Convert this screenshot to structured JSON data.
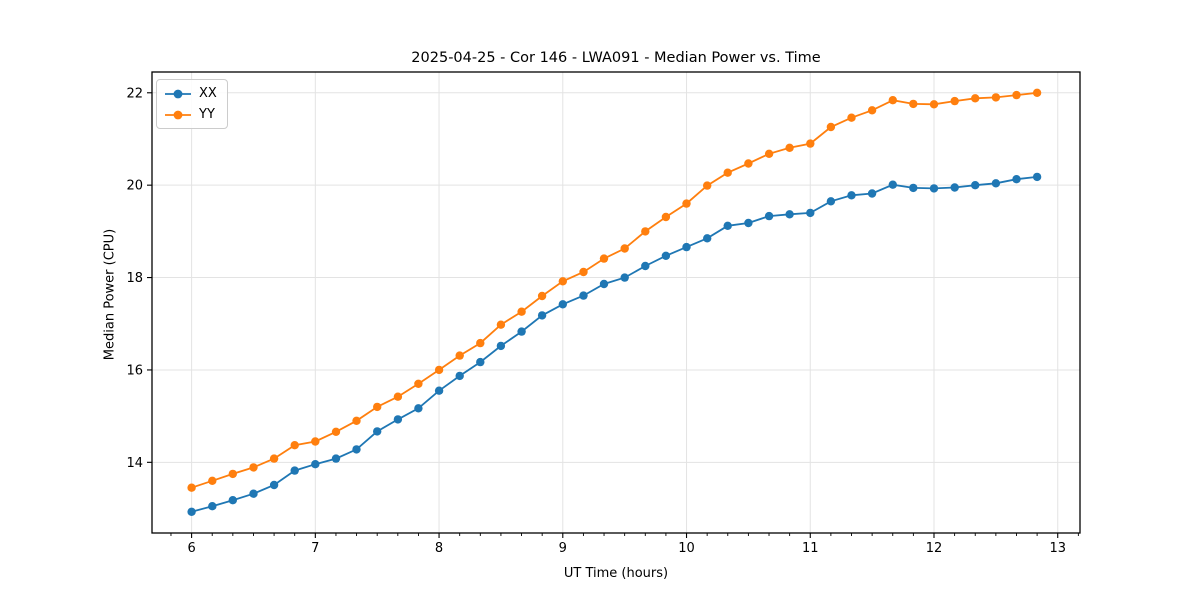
{
  "page": {
    "background": "#ffffff"
  },
  "chart_data": {
    "type": "line",
    "title": "2025-04-25 - Cor 146 - LWA091 - Median Power vs. Time",
    "xlabel": "UT Time (hours)",
    "ylabel": "Median Power (CPU)",
    "xlim": [
      5.68,
      13.18
    ],
    "ylim": [
      12.47,
      22.45
    ],
    "xticks": [
      6,
      7,
      8,
      9,
      10,
      11,
      12,
      13
    ],
    "yticks": [
      14,
      16,
      18,
      20,
      22
    ],
    "x_minor_tick_step": 0.1667,
    "grid": true,
    "grid_color": "#e3e3e3",
    "legend_position": "upper left",
    "x": [
      6.0,
      6.167,
      6.333,
      6.5,
      6.667,
      6.833,
      7.0,
      7.167,
      7.333,
      7.5,
      7.667,
      7.833,
      8.0,
      8.167,
      8.333,
      8.5,
      8.667,
      8.833,
      9.0,
      9.167,
      9.333,
      9.5,
      9.667,
      9.833,
      10.0,
      10.167,
      10.333,
      10.5,
      10.667,
      10.833,
      11.0,
      11.167,
      11.333,
      11.5,
      11.667,
      11.833,
      12.0,
      12.167,
      12.333,
      12.5,
      12.667,
      12.833
    ],
    "series": [
      {
        "name": "XX",
        "color": "#1f77b4",
        "values": [
          12.93,
          13.05,
          13.18,
          13.32,
          13.51,
          13.82,
          13.96,
          14.08,
          14.28,
          14.67,
          14.93,
          15.17,
          15.55,
          15.87,
          16.17,
          16.52,
          16.83,
          17.18,
          17.42,
          17.61,
          17.86,
          18.0,
          18.25,
          18.47,
          18.66,
          18.85,
          19.12,
          19.18,
          19.33,
          19.37,
          19.4,
          19.65,
          19.78,
          19.82,
          20.01,
          19.94,
          19.93,
          19.95,
          20.0,
          20.04,
          20.13,
          20.18
        ]
      },
      {
        "name": "YY",
        "color": "#ff7f0e",
        "values": [
          13.45,
          13.6,
          13.75,
          13.89,
          14.08,
          14.37,
          14.45,
          14.66,
          14.9,
          15.2,
          15.42,
          15.7,
          16.0,
          16.31,
          16.58,
          16.98,
          17.26,
          17.6,
          17.92,
          18.12,
          18.41,
          18.63,
          19.0,
          19.31,
          19.6,
          19.99,
          20.27,
          20.47,
          20.68,
          20.81,
          20.9,
          21.26,
          21.46,
          21.62,
          21.84,
          21.76,
          21.75,
          21.82,
          21.88,
          21.9,
          21.95,
          22.0
        ]
      }
    ]
  }
}
